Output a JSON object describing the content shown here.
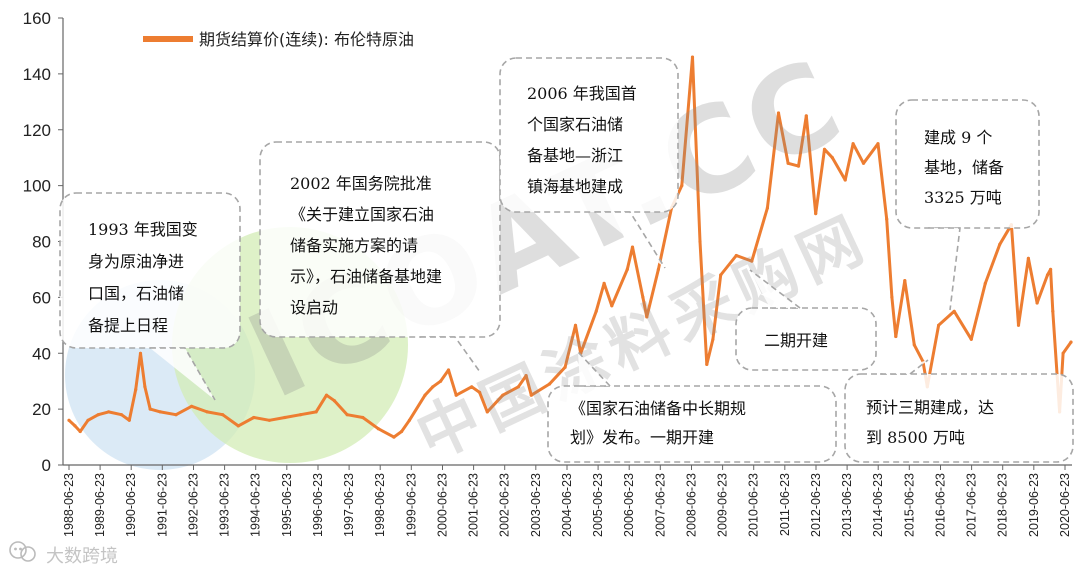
{
  "chart_data": {
    "type": "line",
    "ylim": [
      0,
      160
    ],
    "yticks": [
      0,
      20,
      40,
      60,
      80,
      100,
      120,
      140,
      160
    ],
    "xticks": [
      "1988-06-23",
      "1989-06-23",
      "1990-06-23",
      "1991-06-23",
      "1992-06-23",
      "1993-06-23",
      "1994-06-23",
      "1995-06-23",
      "1996-06-23",
      "1997-06-23",
      "1998-06-23",
      "1999-06-23",
      "2000-06-23",
      "2001-06-23",
      "2002-06-23",
      "2003-06-23",
      "2004-06-23",
      "2005-06-23",
      "2006-06-23",
      "2007-06-23",
      "2008-06-23",
      "2009-06-23",
      "2010-06-23",
      "2011-06-23",
      "2012-06-23",
      "2013-06-23",
      "2014-06-23",
      "2015-06-23",
      "2016-06-23",
      "2017-06-23",
      "2018-06-23",
      "2019-06-23",
      "2020-06-23"
    ],
    "grid": false,
    "legend_position": "top-left",
    "series": [
      {
        "name": "期货结算价(连续): 布伦特原油",
        "color": "#ed7d31",
        "points": [
          [
            "1988-06-23",
            16
          ],
          [
            "1988-09-01",
            14
          ],
          [
            "1988-11-01",
            12
          ],
          [
            "1989-02-01",
            16
          ],
          [
            "1989-06-01",
            18
          ],
          [
            "1989-10-01",
            19
          ],
          [
            "1990-03-01",
            18
          ],
          [
            "1990-06-01",
            16
          ],
          [
            "1990-08-15",
            27
          ],
          [
            "1990-10-10",
            40
          ],
          [
            "1990-12-01",
            28
          ],
          [
            "1991-02-01",
            20
          ],
          [
            "1991-06-01",
            19
          ],
          [
            "1991-12-01",
            18
          ],
          [
            "1992-06-01",
            21
          ],
          [
            "1992-12-01",
            19
          ],
          [
            "1993-06-01",
            18
          ],
          [
            "1993-12-01",
            14
          ],
          [
            "1994-06-01",
            17
          ],
          [
            "1994-12-01",
            16
          ],
          [
            "1995-06-01",
            17
          ],
          [
            "1995-12-01",
            18
          ],
          [
            "1996-06-01",
            19
          ],
          [
            "1996-10-01",
            25
          ],
          [
            "1997-01-01",
            23
          ],
          [
            "1997-06-01",
            18
          ],
          [
            "1997-12-01",
            17
          ],
          [
            "1998-06-01",
            13
          ],
          [
            "1998-12-01",
            10
          ],
          [
            "1999-03-01",
            12
          ],
          [
            "1999-06-01",
            16
          ],
          [
            "1999-12-01",
            25
          ],
          [
            "2000-03-01",
            28
          ],
          [
            "2000-06-01",
            30
          ],
          [
            "2000-09-01",
            34
          ],
          [
            "2000-12-01",
            25
          ],
          [
            "2001-06-01",
            28
          ],
          [
            "2001-09-01",
            26
          ],
          [
            "2001-12-01",
            19
          ],
          [
            "2002-06-01",
            25
          ],
          [
            "2002-12-01",
            28
          ],
          [
            "2003-03-01",
            32
          ],
          [
            "2003-05-01",
            25
          ],
          [
            "2003-12-01",
            29
          ],
          [
            "2004-06-01",
            35
          ],
          [
            "2004-10-01",
            50
          ],
          [
            "2004-12-01",
            40
          ],
          [
            "2005-06-01",
            55
          ],
          [
            "2005-09-01",
            65
          ],
          [
            "2005-12-01",
            57
          ],
          [
            "2006-06-01",
            70
          ],
          [
            "2006-08-01",
            78
          ],
          [
            "2006-12-01",
            60
          ],
          [
            "2007-01-15",
            53
          ],
          [
            "2007-06-01",
            70
          ],
          [
            "2007-11-01",
            92
          ],
          [
            "2008-03-01",
            100
          ],
          [
            "2008-07-05",
            146
          ],
          [
            "2008-10-01",
            80
          ],
          [
            "2008-12-20",
            36
          ],
          [
            "2009-03-01",
            45
          ],
          [
            "2009-06-01",
            68
          ],
          [
            "2009-12-01",
            75
          ],
          [
            "2010-06-01",
            73
          ],
          [
            "2010-12-01",
            92
          ],
          [
            "2011-04-10",
            126
          ],
          [
            "2011-08-01",
            108
          ],
          [
            "2011-12-01",
            107
          ],
          [
            "2012-03-01",
            125
          ],
          [
            "2012-06-20",
            90
          ],
          [
            "2012-10-01",
            113
          ],
          [
            "2013-01-01",
            110
          ],
          [
            "2013-06-01",
            102
          ],
          [
            "2013-09-01",
            115
          ],
          [
            "2014-01-01",
            108
          ],
          [
            "2014-06-20",
            115
          ],
          [
            "2014-10-01",
            88
          ],
          [
            "2014-12-01",
            60
          ],
          [
            "2015-01-15",
            46
          ],
          [
            "2015-05-01",
            66
          ],
          [
            "2015-08-20",
            43
          ],
          [
            "2015-12-01",
            37
          ],
          [
            "2016-01-20",
            28
          ],
          [
            "2016-06-01",
            50
          ],
          [
            "2016-12-01",
            55
          ],
          [
            "2017-06-20",
            45
          ],
          [
            "2017-12-01",
            65
          ],
          [
            "2018-05-20",
            79
          ],
          [
            "2018-10-03",
            86
          ],
          [
            "2018-12-25",
            50
          ],
          [
            "2019-04-20",
            74
          ],
          [
            "2019-08-01",
            58
          ],
          [
            "2019-12-01",
            68
          ],
          [
            "2020-01-06",
            70
          ],
          [
            "2020-02-01",
            55
          ],
          [
            "2020-04-21",
            19
          ],
          [
            "2020-06-01",
            40
          ],
          [
            "2020-09-01",
            44
          ]
        ]
      }
    ],
    "annotations": [
      {
        "lines": [
          "1993 年我国变",
          "身为原油净进",
          "口国，石油储",
          "备提上日程"
        ]
      },
      {
        "lines": [
          "2002 年国务院批准",
          "《关于建立国家石油",
          "储备实施方案的请",
          "示》，石油储备基地建",
          "设启动"
        ]
      },
      {
        "lines": [
          "2006 年我国首",
          "个国家石油储",
          "备基地—浙江",
          "镇海基地建成"
        ]
      },
      {
        "lines": [
          "《国家石油储备中长期规",
          "划》发布。一期开建"
        ]
      },
      {
        "lines": [
          "二期开建"
        ]
      },
      {
        "lines": [
          "建成 9 个",
          "基地，储备",
          "3325 万吨"
        ]
      },
      {
        "lines": [
          "预计三期建成，达",
          "到 8500 万吨"
        ]
      }
    ]
  },
  "watermark": {
    "text_main": "ICOAT.CC",
    "text_sub": "中国涂料采购网",
    "footer": "大数跨境"
  },
  "colors": {
    "line": "#ed7d31",
    "watermark_green": "#d3ecb6",
    "watermark_blue": "#cfe3f3"
  }
}
